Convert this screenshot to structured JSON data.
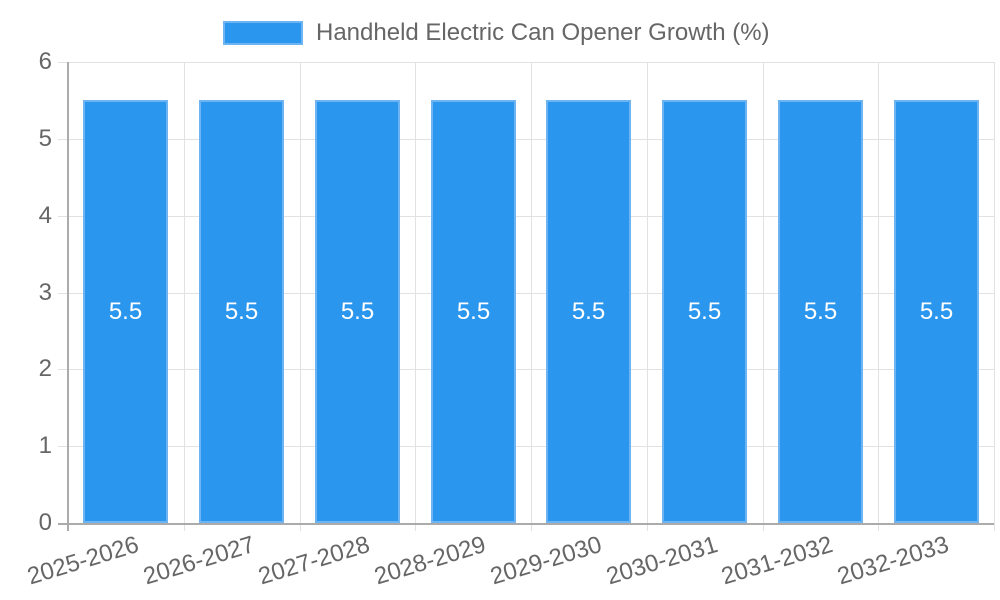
{
  "chart_data": {
    "type": "bar",
    "title": "Handheld Electric Can Opener Growth (%)",
    "legend_label": "Handheld Electric Can Opener Growth (%)",
    "legend_position": "top",
    "categories": [
      "2025-2026",
      "2026-2027",
      "2027-2028",
      "2028-2029",
      "2029-2030",
      "2030-2031",
      "2031-2032",
      "2032-2033"
    ],
    "values": [
      5.5,
      5.5,
      5.5,
      5.5,
      5.5,
      5.5,
      5.5,
      5.5
    ],
    "bar_value_labels": [
      "5.5",
      "5.5",
      "5.5",
      "5.5",
      "5.5",
      "5.5",
      "5.5",
      "5.5"
    ],
    "xlabel": "",
    "ylabel": "",
    "ylim": [
      0,
      6
    ],
    "yticks": [
      0,
      1,
      2,
      3,
      4,
      5,
      6
    ],
    "grid": true,
    "colors": {
      "bar_fill": "#2B96EE",
      "bar_border": "#6FB4F2",
      "grid_line": "#E2E2E2",
      "axis_line": "#ABABAB",
      "tick_text": "#666666",
      "bar_label_text": "#FFFFFF",
      "background": "#FFFFFF"
    }
  }
}
